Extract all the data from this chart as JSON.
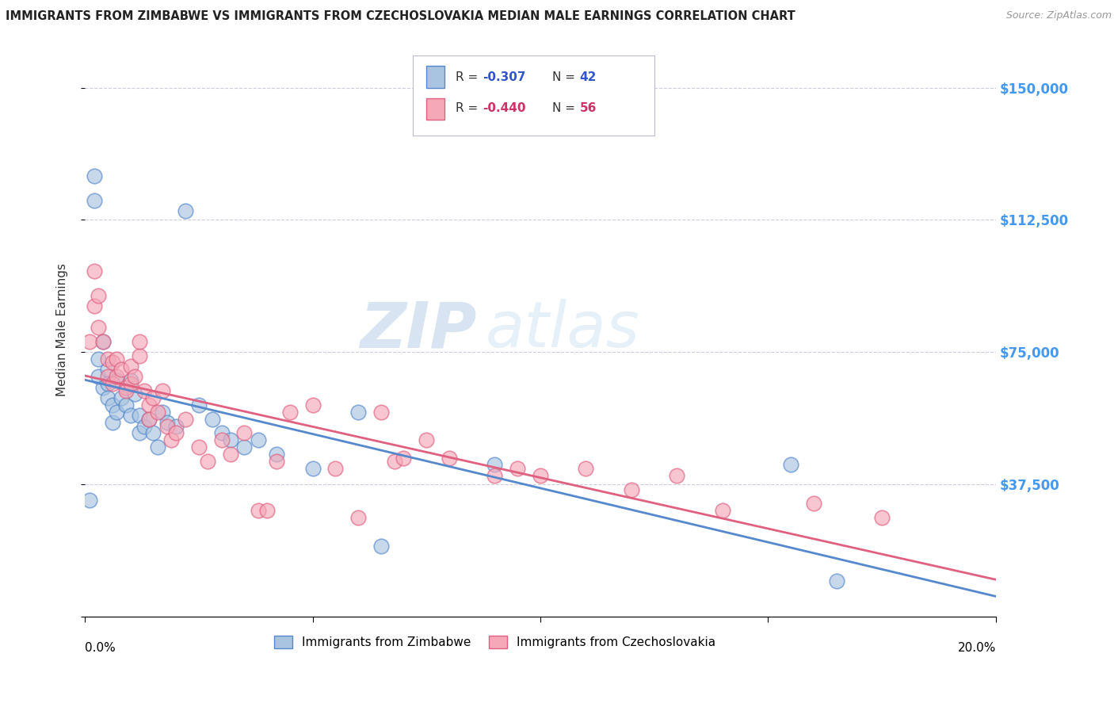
{
  "title": "IMMIGRANTS FROM ZIMBABWE VS IMMIGRANTS FROM CZECHOSLOVAKIA MEDIAN MALE EARNINGS CORRELATION CHART",
  "source": "Source: ZipAtlas.com",
  "ylabel": "Median Male Earnings",
  "y_ticks": [
    0,
    37500,
    75000,
    112500,
    150000
  ],
  "y_tick_labels": [
    "",
    "$37,500",
    "$75,000",
    "$112,500",
    "$150,000"
  ],
  "x_lim": [
    0.0,
    0.2
  ],
  "y_lim": [
    0,
    162500
  ],
  "color_blue": "#a8c4e0",
  "color_pink": "#f4a8b8",
  "color_blue_line": "#5588cc",
  "color_pink_line": "#e06080",
  "color_r_blue": "#3355cc",
  "color_r_pink": "#cc3366",
  "watermark_zip": "ZIP",
  "watermark_atlas": "atlas",
  "background_color": "#ffffff",
  "grid_color": "#ccccdd",
  "title_color": "#222222",
  "zimbabwe_x": [
    0.001,
    0.002,
    0.002,
    0.003,
    0.003,
    0.004,
    0.004,
    0.005,
    0.005,
    0.005,
    0.006,
    0.006,
    0.007,
    0.007,
    0.008,
    0.009,
    0.01,
    0.01,
    0.011,
    0.012,
    0.012,
    0.013,
    0.014,
    0.015,
    0.016,
    0.017,
    0.018,
    0.02,
    0.022,
    0.025,
    0.028,
    0.03,
    0.032,
    0.035,
    0.038,
    0.042,
    0.05,
    0.06,
    0.065,
    0.09,
    0.155,
    0.165
  ],
  "zimbabwe_y": [
    33000,
    125000,
    118000,
    68000,
    73000,
    78000,
    65000,
    70000,
    66000,
    62000,
    60000,
    55000,
    67000,
    58000,
    62000,
    60000,
    67000,
    57000,
    63000,
    57000,
    52000,
    54000,
    56000,
    52000,
    48000,
    58000,
    55000,
    54000,
    115000,
    60000,
    56000,
    52000,
    50000,
    48000,
    50000,
    46000,
    42000,
    58000,
    20000,
    43000,
    43000,
    10000
  ],
  "czechoslovakia_x": [
    0.001,
    0.002,
    0.002,
    0.003,
    0.003,
    0.004,
    0.005,
    0.005,
    0.006,
    0.006,
    0.007,
    0.007,
    0.008,
    0.009,
    0.009,
    0.01,
    0.01,
    0.011,
    0.012,
    0.012,
    0.013,
    0.014,
    0.014,
    0.015,
    0.016,
    0.017,
    0.018,
    0.019,
    0.02,
    0.022,
    0.025,
    0.027,
    0.03,
    0.032,
    0.035,
    0.038,
    0.04,
    0.042,
    0.045,
    0.05,
    0.055,
    0.06,
    0.065,
    0.068,
    0.07,
    0.075,
    0.08,
    0.09,
    0.095,
    0.1,
    0.11,
    0.12,
    0.13,
    0.14,
    0.16,
    0.175
  ],
  "czechoslovakia_y": [
    78000,
    98000,
    88000,
    82000,
    91000,
    78000,
    73000,
    68000,
    72000,
    66000,
    73000,
    68000,
    70000,
    65000,
    64000,
    66000,
    71000,
    68000,
    74000,
    78000,
    64000,
    60000,
    56000,
    62000,
    58000,
    64000,
    54000,
    50000,
    52000,
    56000,
    48000,
    44000,
    50000,
    46000,
    52000,
    30000,
    30000,
    44000,
    58000,
    60000,
    42000,
    28000,
    58000,
    44000,
    45000,
    50000,
    45000,
    40000,
    42000,
    40000,
    42000,
    36000,
    40000,
    30000,
    32000,
    28000
  ]
}
